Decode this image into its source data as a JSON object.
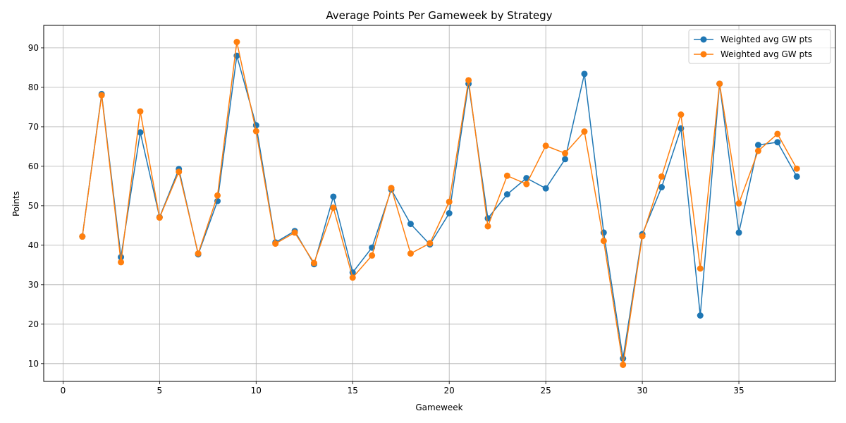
{
  "chart_data": {
    "type": "line",
    "title": "Average Points Per Gameweek by Strategy",
    "xlabel": "Gameweek",
    "ylabel": "Points",
    "xlim": [
      -1,
      40
    ],
    "ylim": [
      5.5,
      95.7
    ],
    "xticks": [
      0,
      5,
      10,
      15,
      20,
      25,
      30,
      35
    ],
    "yticks": [
      10,
      20,
      30,
      40,
      50,
      60,
      70,
      80,
      90
    ],
    "grid": true,
    "legend_position": "top-right",
    "x": [
      1,
      2,
      3,
      4,
      5,
      6,
      7,
      8,
      9,
      10,
      11,
      12,
      13,
      14,
      15,
      16,
      17,
      18,
      19,
      20,
      21,
      22,
      23,
      24,
      25,
      26,
      27,
      28,
      29,
      30,
      31,
      32,
      33,
      34,
      35,
      36,
      37,
      38
    ],
    "series": [
      {
        "name": "Weighted avg GW pts",
        "color": "#1f77b4",
        "values": [
          42.2,
          78.3,
          37.0,
          68.6,
          47.1,
          59.3,
          37.7,
          51.2,
          88.0,
          70.4,
          40.7,
          43.6,
          35.2,
          52.3,
          33.1,
          39.4,
          54.1,
          45.4,
          40.2,
          48.1,
          80.9,
          46.8,
          52.9,
          57.0,
          54.4,
          61.8,
          83.4,
          43.2,
          11.3,
          42.8,
          54.7,
          69.6,
          22.2,
          80.9,
          43.2,
          65.4,
          66.1,
          57.4
        ]
      },
      {
        "name": "Weighted avg GW pts",
        "color": "#ff7f0e",
        "values": [
          42.2,
          78.0,
          35.7,
          73.9,
          47.0,
          58.6,
          37.9,
          52.6,
          91.5,
          68.9,
          40.4,
          43.2,
          35.5,
          49.5,
          31.8,
          37.4,
          54.5,
          37.9,
          40.5,
          51.0,
          81.8,
          44.8,
          57.6,
          55.5,
          65.2,
          63.3,
          68.8,
          41.1,
          9.7,
          42.3,
          57.4,
          73.1,
          34.1,
          80.9,
          50.6,
          63.9,
          68.2,
          59.4
        ]
      }
    ]
  }
}
